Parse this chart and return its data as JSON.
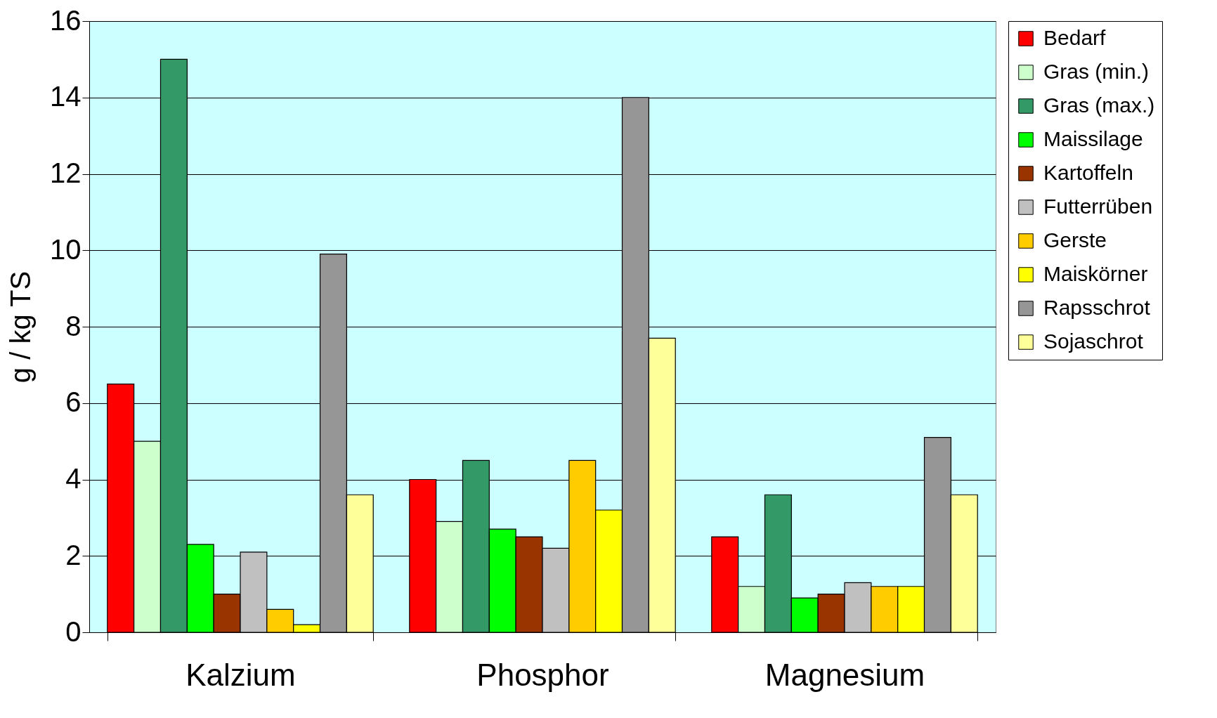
{
  "chart_data": {
    "type": "bar",
    "ylabel": "g / kg TS",
    "categories": [
      "Kalzium",
      "Phosphor",
      "Magnesium"
    ],
    "series": [
      {
        "name": "Bedarf",
        "color": "#ff0000",
        "values": [
          6.5,
          4.0,
          2.5
        ]
      },
      {
        "name": "Gras (min.)",
        "color": "#ccffcc",
        "values": [
          5.0,
          2.9,
          1.2
        ]
      },
      {
        "name": "Gras (max.)",
        "color": "#339966",
        "values": [
          15,
          4.5,
          3.6
        ]
      },
      {
        "name": "Maissilage",
        "color": "#00ff00",
        "values": [
          2.3,
          2.7,
          0.9
        ]
      },
      {
        "name": "Kartoffeln",
        "color": "#993300",
        "values": [
          1.0,
          2.5,
          1.0
        ]
      },
      {
        "name": "Futterrüben",
        "color": "#c0c0c0",
        "values": [
          2.1,
          2.2,
          1.3
        ]
      },
      {
        "name": "Gerste",
        "color": "#ffcc00",
        "values": [
          0.6,
          4.5,
          1.2
        ]
      },
      {
        "name": "Maiskörner",
        "color": "#ffff00",
        "values": [
          0.2,
          3.2,
          1.2
        ]
      },
      {
        "name": "Rapsschrot",
        "color": "#969696",
        "values": [
          9.9,
          14,
          5.1
        ]
      },
      {
        "name": "Sojaschrot",
        "color": "#ffff99",
        "values": [
          3.6,
          7.7,
          3.6
        ]
      }
    ],
    "ylim": [
      0,
      16
    ],
    "yticks": [
      0,
      2,
      4,
      6,
      8,
      10,
      12,
      14,
      16
    ],
    "grid": "y",
    "legend": "right"
  }
}
